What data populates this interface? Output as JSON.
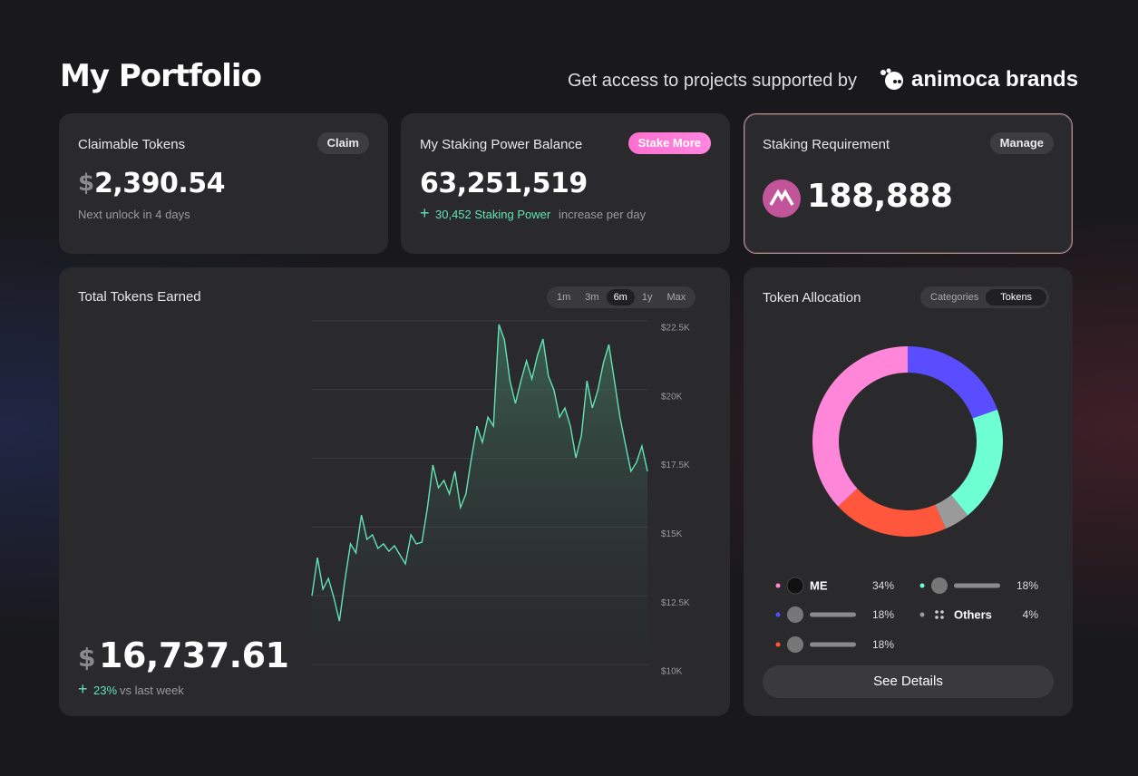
{
  "header": {
    "title": "My Portfolio",
    "tagline": "Get access to projects supported by",
    "brand": "animoca brands"
  },
  "cards": {
    "claimable": {
      "title": "Claimable Tokens",
      "button": "Claim",
      "currency": "$",
      "amount": "2,390.54",
      "note": "Next unlock in 4 days"
    },
    "staking_power": {
      "title": "My Staking Power Balance",
      "button": "Stake More",
      "amount": "63,251,519",
      "delta": "30,452 Staking Power",
      "note": "increase per day"
    },
    "requirement": {
      "title": "Staking Requirement",
      "button": "Manage",
      "amount": "188,888"
    },
    "earned": {
      "title": "Total Tokens Earned",
      "ranges": [
        "1m",
        "3m",
        "6m",
        "1y",
        "Max"
      ],
      "currency": "$",
      "amount": "16,737.61",
      "change": "23%",
      "change_note": "vs last week"
    },
    "allocation": {
      "title": "Token Allocation",
      "tabs": [
        "Categories",
        "Tokens"
      ],
      "button": "See Details"
    }
  },
  "chart_data": [
    {
      "type": "line",
      "color": "#62e3b4",
      "categories": [
        null,
        null,
        null,
        null,
        null,
        null,
        null,
        null,
        null,
        null,
        null,
        null,
        null,
        null,
        null,
        null,
        null,
        null,
        null,
        null,
        null,
        null,
        null,
        null,
        null,
        null,
        null,
        null,
        null,
        null,
        null,
        null,
        null,
        null,
        null,
        null,
        null,
        null,
        null,
        null,
        null,
        null,
        null,
        null,
        null,
        null,
        null,
        null,
        null,
        null,
        null,
        null,
        null,
        null,
        null,
        null,
        null,
        null,
        null,
        null,
        null,
        null
      ],
      "values": [
        12500,
        13890,
        12740,
        13130,
        12410,
        11580,
        13070,
        14390,
        14060,
        15440,
        14550,
        14720,
        14220,
        14390,
        14120,
        14320,
        13990,
        13660,
        14720,
        14390,
        14450,
        15710,
        17260,
        16430,
        16700,
        16200,
        17030,
        15710,
        16200,
        17520,
        18670,
        18080,
        19000,
        18670,
        22370,
        21810,
        20320,
        19500,
        20320,
        21050,
        20390,
        21250,
        21840,
        20490,
        19990,
        19000,
        19330,
        18670,
        17520,
        18340,
        20320,
        19330,
        19990,
        20980,
        21640,
        20320,
        19000,
        18010,
        17030,
        17350,
        17950,
        17030
      ],
      "ylim": [
        10000,
        22500
      ],
      "yticks": [
        {
          "value": 10000,
          "label": "$10K"
        },
        {
          "value": 12500,
          "label": "$12.5K"
        },
        {
          "value": 15000,
          "label": "$15K"
        },
        {
          "value": 17500,
          "label": "$17.5K"
        },
        {
          "value": 20000,
          "label": "$20K"
        },
        {
          "value": 22500,
          "label": "$22.5K"
        }
      ],
      "grid": true
    },
    {
      "type": "pie",
      "categories": [
        "ME",
        null,
        null,
        null,
        "Others"
      ],
      "values": [
        34,
        18,
        18,
        18,
        4
      ],
      "value_labels": [
        "34%",
        "18%",
        "18%",
        "18%",
        "4%"
      ],
      "colors": [
        "#ff86d9",
        "#5a4dff",
        "#ff573b",
        "#6effd3",
        "#9a9a9a"
      ]
    }
  ]
}
